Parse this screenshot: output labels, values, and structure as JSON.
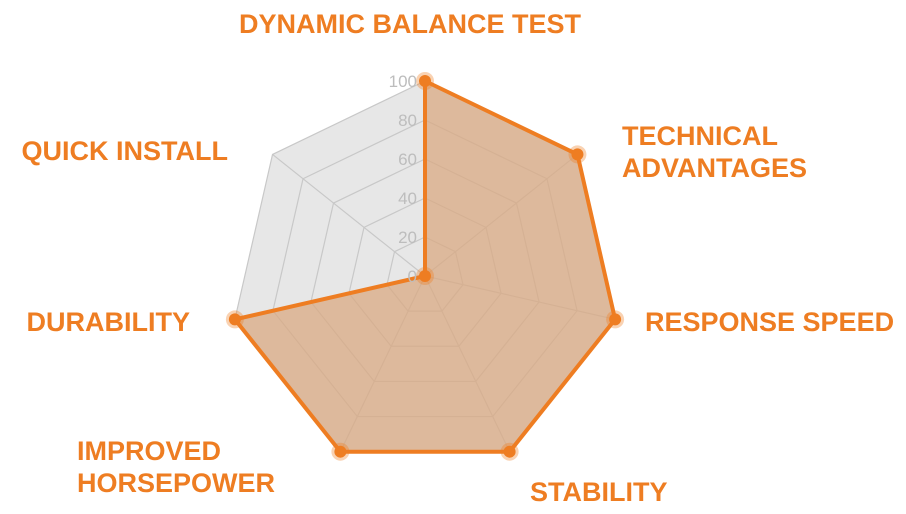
{
  "chart_data": {
    "type": "radar",
    "title": "",
    "axes": [
      [
        "DYNAMIC BALANCE TEST"
      ],
      [
        "TECHNICAL",
        "ADVANTAGES"
      ],
      [
        "RESPONSE SPEED"
      ],
      [
        "STABILITY"
      ],
      [
        "IMPROVED",
        "HORSEPOWER"
      ],
      [
        "DURABILITY"
      ],
      [
        "QUICK INSTALL"
      ]
    ],
    "series": [
      {
        "values": [
          100,
          100,
          100,
          100,
          100,
          100,
          0
        ]
      }
    ],
    "rlim": [
      0,
      100
    ],
    "ticks": [
      "0",
      "20",
      "40",
      "60",
      "80",
      "100"
    ],
    "grid": true,
    "colors": {
      "series_stroke": "#ee7d22",
      "series_fill": "#d9a880",
      "grid": "#c8c8c8",
      "background_fill": "#e7e7e7",
      "label": "#ee7d22",
      "tick": "#bdbdbd"
    }
  }
}
